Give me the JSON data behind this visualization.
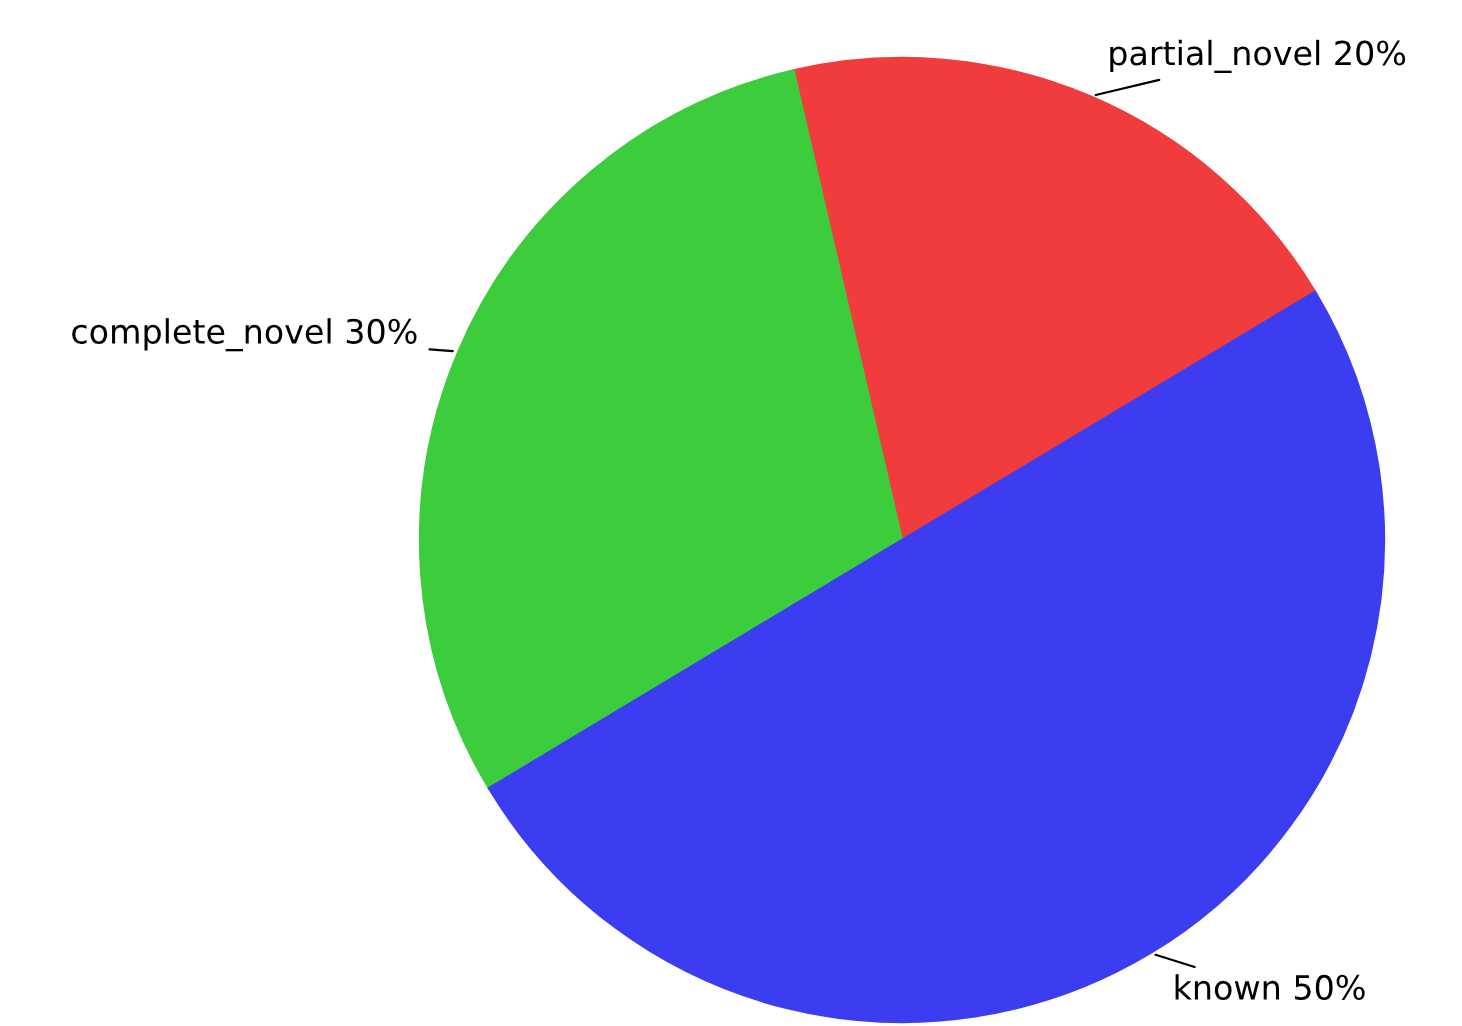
{
  "chart_data": {
    "type": "pie",
    "categories": [
      "partial_novel",
      "complete_novel",
      "known"
    ],
    "values": [
      20,
      30,
      50
    ],
    "value_labels": [
      "20%",
      "30%",
      "50%"
    ],
    "colors": [
      "#f03c3c",
      "#3ccc3c",
      "#3c3cf0"
    ]
  }
}
